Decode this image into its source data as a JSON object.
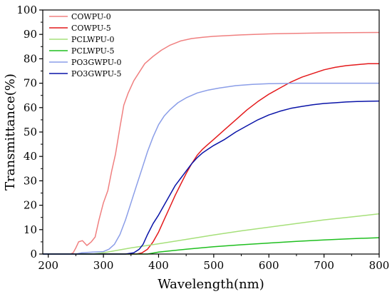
{
  "chart_data": {
    "type": "line",
    "title": "",
    "xlabel": "Wavelength(nm)",
    "ylabel": "Transmittance(%)",
    "xlim": [
      190,
      800
    ],
    "ylim": [
      0,
      100
    ],
    "xticks": [
      200,
      300,
      400,
      500,
      600,
      700,
      800
    ],
    "yticks": [
      0,
      10,
      20,
      30,
      40,
      50,
      60,
      70,
      80,
      90,
      100
    ],
    "grid": false,
    "legend_position": "top-left",
    "series": [
      {
        "name": "COWPU-0",
        "color": "#f08080",
        "points": [
          [
            190,
            0
          ],
          [
            240,
            0
          ],
          [
            245,
            0.5
          ],
          [
            250,
            2.5
          ],
          [
            255,
            5
          ],
          [
            262,
            5.5
          ],
          [
            270,
            3.5
          ],
          [
            278,
            5
          ],
          [
            285,
            7
          ],
          [
            292,
            14
          ],
          [
            300,
            21
          ],
          [
            308,
            26
          ],
          [
            315,
            34
          ],
          [
            322,
            41
          ],
          [
            330,
            52
          ],
          [
            337,
            61
          ],
          [
            345,
            66
          ],
          [
            355,
            71
          ],
          [
            365,
            74.5
          ],
          [
            375,
            78
          ],
          [
            390,
            81
          ],
          [
            405,
            83.5
          ],
          [
            420,
            85.5
          ],
          [
            440,
            87.3
          ],
          [
            460,
            88.3
          ],
          [
            480,
            88.8
          ],
          [
            500,
            89.2
          ],
          [
            550,
            89.8
          ],
          [
            600,
            90.2
          ],
          [
            650,
            90.4
          ],
          [
            700,
            90.6
          ],
          [
            750,
            90.7
          ],
          [
            800,
            90.8
          ]
        ]
      },
      {
        "name": "COWPU-5",
        "color": "#e41a1c",
        "points": [
          [
            190,
            0
          ],
          [
            360,
            0
          ],
          [
            370,
            0.5
          ],
          [
            380,
            2
          ],
          [
            390,
            5
          ],
          [
            400,
            9
          ],
          [
            410,
            14
          ],
          [
            420,
            19
          ],
          [
            430,
            24
          ],
          [
            440,
            28.5
          ],
          [
            450,
            33
          ],
          [
            460,
            37
          ],
          [
            470,
            40.5
          ],
          [
            480,
            43
          ],
          [
            490,
            45
          ],
          [
            500,
            47
          ],
          [
            520,
            51
          ],
          [
            540,
            55
          ],
          [
            560,
            59
          ],
          [
            580,
            62.5
          ],
          [
            600,
            65.5
          ],
          [
            620,
            68
          ],
          [
            640,
            70.5
          ],
          [
            660,
            72.5
          ],
          [
            680,
            74
          ],
          [
            700,
            75.5
          ],
          [
            720,
            76.5
          ],
          [
            740,
            77.2
          ],
          [
            760,
            77.6
          ],
          [
            780,
            78
          ],
          [
            800,
            78
          ]
        ]
      },
      {
        "name": "PCLWPU-0",
        "color": "#a6e07a",
        "points": [
          [
            190,
            0
          ],
          [
            280,
            0
          ],
          [
            300,
            0.5
          ],
          [
            350,
            2.5
          ],
          [
            400,
            4.2
          ],
          [
            450,
            6
          ],
          [
            500,
            7.8
          ],
          [
            550,
            9.5
          ],
          [
            600,
            11
          ],
          [
            650,
            12.5
          ],
          [
            700,
            14
          ],
          [
            750,
            15.2
          ],
          [
            800,
            16.5
          ]
        ]
      },
      {
        "name": "PCLWPU-5",
        "color": "#1fbf1f",
        "points": [
          [
            190,
            0
          ],
          [
            380,
            0
          ],
          [
            400,
            0.8
          ],
          [
            450,
            2
          ],
          [
            500,
            3
          ],
          [
            550,
            3.8
          ],
          [
            600,
            4.5
          ],
          [
            650,
            5.2
          ],
          [
            700,
            5.8
          ],
          [
            750,
            6.3
          ],
          [
            800,
            6.7
          ]
        ]
      },
      {
        "name": "PO3GWPU-0",
        "color": "#8b9ee8",
        "points": [
          [
            190,
            0
          ],
          [
            250,
            0
          ],
          [
            260,
            0.5
          ],
          [
            280,
            0.8
          ],
          [
            300,
            1
          ],
          [
            310,
            2
          ],
          [
            320,
            4
          ],
          [
            330,
            8
          ],
          [
            340,
            14
          ],
          [
            350,
            21
          ],
          [
            360,
            28
          ],
          [
            370,
            35
          ],
          [
            380,
            42
          ],
          [
            390,
            48
          ],
          [
            400,
            53
          ],
          [
            410,
            56.5
          ],
          [
            420,
            59
          ],
          [
            435,
            62
          ],
          [
            450,
            64
          ],
          [
            470,
            66
          ],
          [
            490,
            67.2
          ],
          [
            510,
            68
          ],
          [
            540,
            69
          ],
          [
            570,
            69.5
          ],
          [
            600,
            69.8
          ],
          [
            650,
            70
          ],
          [
            700,
            70
          ],
          [
            750,
            70
          ],
          [
            800,
            70
          ]
        ]
      },
      {
        "name": "PO3GWPU-5",
        "color": "#0a14a8",
        "points": [
          [
            190,
            0
          ],
          [
            340,
            0
          ],
          [
            355,
            0.5
          ],
          [
            365,
            2
          ],
          [
            372,
            4
          ],
          [
            380,
            8
          ],
          [
            390,
            12.5
          ],
          [
            400,
            16
          ],
          [
            410,
            20
          ],
          [
            420,
            24
          ],
          [
            430,
            28
          ],
          [
            440,
            31
          ],
          [
            450,
            34
          ],
          [
            460,
            37
          ],
          [
            470,
            39.5
          ],
          [
            480,
            41.5
          ],
          [
            490,
            43
          ],
          [
            500,
            44.5
          ],
          [
            520,
            47
          ],
          [
            540,
            50
          ],
          [
            560,
            52.5
          ],
          [
            580,
            55
          ],
          [
            600,
            57
          ],
          [
            620,
            58.5
          ],
          [
            640,
            59.7
          ],
          [
            660,
            60.5
          ],
          [
            680,
            61.2
          ],
          [
            700,
            61.7
          ],
          [
            720,
            62
          ],
          [
            740,
            62.3
          ],
          [
            760,
            62.5
          ],
          [
            780,
            62.6
          ],
          [
            800,
            62.7
          ]
        ]
      }
    ]
  }
}
